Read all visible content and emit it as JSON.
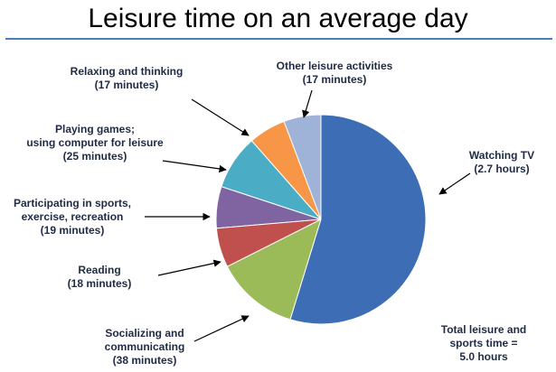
{
  "chart_data": {
    "type": "pie",
    "title": "Leisure time on an average day",
    "categories": [
      "Watching TV",
      "Socializing and\ncommunicating",
      "Reading",
      "Participating in sports,\nexercise, recreation",
      "Playing games;\nusing computer for leisure",
      "Relaxing and thinking",
      "Other leisure activities"
    ],
    "values": [
      162,
      38,
      18,
      19,
      25,
      17,
      17
    ],
    "value_labels": [
      "(2.7 hours)",
      "(38 minutes)",
      "(18 minutes)",
      "(19 minutes)",
      "(25 minutes)",
      "(17 minutes)",
      "(17 minutes)"
    ],
    "colors": [
      "#3d6eb5",
      "#9bbb59",
      "#c0504d",
      "#8064a2",
      "#4bacc6",
      "#f79646",
      "#9fb3d8"
    ],
    "annotation": "Total leisure and\nsports time =\n5.0 hours"
  }
}
